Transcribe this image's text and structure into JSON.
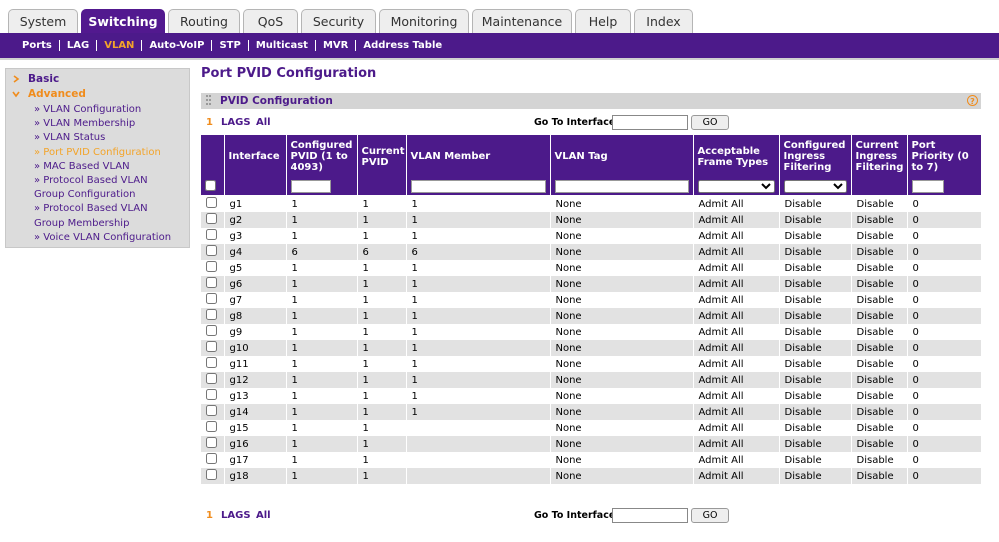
{
  "tabs": [
    "System",
    "Switching",
    "Routing",
    "QoS",
    "Security",
    "Monitoring",
    "Maintenance",
    "Help",
    "Index"
  ],
  "subnav": [
    "Ports",
    "LAG",
    "VLAN",
    "Auto-VoIP",
    "STP",
    "Multicast",
    "MVR",
    "Address Table"
  ],
  "sidebar": {
    "sections": [
      {
        "label": "Basic"
      },
      {
        "label": "Advanced",
        "items": [
          "» VLAN Configuration",
          "» VLAN Membership",
          "» VLAN Status",
          "» Port PVID Configuration",
          "» MAC Based VLAN",
          "» Protocol Based VLAN Group Configuration",
          "» Protocol Based VLAN Group Membership",
          "» Voice VLAN Configuration"
        ]
      }
    ]
  },
  "page_title": "Port PVID Configuration",
  "panel": {
    "title": "PVID Configuration",
    "help": "?"
  },
  "pager": {
    "items": [
      "1",
      "LAGS",
      "All"
    ],
    "goto_label": "Go To Interface",
    "go_button": "GO"
  },
  "table": {
    "columns": [
      "Interface",
      "Configured PVID (1 to 4093)",
      "Current PVID",
      "VLAN Member",
      "VLAN Tag",
      "Acceptable Frame Types",
      "Configured Ingress Filtering",
      "Current Ingress Filtering",
      "Port Priority (0 to 7)"
    ],
    "rows": [
      {
        "interface": "g1",
        "pvid": 1,
        "current_pvid": 1,
        "member": 1,
        "tag": "None",
        "frame_types": "Admit All",
        "ingress": "Disable",
        "current_ingress": "Disable",
        "priority": 0
      },
      {
        "interface": "g2",
        "pvid": 1,
        "current_pvid": 1,
        "member": 1,
        "tag": "None",
        "frame_types": "Admit All",
        "ingress": "Disable",
        "current_ingress": "Disable",
        "priority": 0
      },
      {
        "interface": "g3",
        "pvid": 1,
        "current_pvid": 1,
        "member": 1,
        "tag": "None",
        "frame_types": "Admit All",
        "ingress": "Disable",
        "current_ingress": "Disable",
        "priority": 0
      },
      {
        "interface": "g4",
        "pvid": 6,
        "current_pvid": 6,
        "member": 6,
        "tag": "None",
        "frame_types": "Admit All",
        "ingress": "Disable",
        "current_ingress": "Disable",
        "priority": 0
      },
      {
        "interface": "g5",
        "pvid": 1,
        "current_pvid": 1,
        "member": 1,
        "tag": "None",
        "frame_types": "Admit All",
        "ingress": "Disable",
        "current_ingress": "Disable",
        "priority": 0
      },
      {
        "interface": "g6",
        "pvid": 1,
        "current_pvid": 1,
        "member": 1,
        "tag": "None",
        "frame_types": "Admit All",
        "ingress": "Disable",
        "current_ingress": "Disable",
        "priority": 0
      },
      {
        "interface": "g7",
        "pvid": 1,
        "current_pvid": 1,
        "member": 1,
        "tag": "None",
        "frame_types": "Admit All",
        "ingress": "Disable",
        "current_ingress": "Disable",
        "priority": 0
      },
      {
        "interface": "g8",
        "pvid": 1,
        "current_pvid": 1,
        "member": 1,
        "tag": "None",
        "frame_types": "Admit All",
        "ingress": "Disable",
        "current_ingress": "Disable",
        "priority": 0
      },
      {
        "interface": "g9",
        "pvid": 1,
        "current_pvid": 1,
        "member": 1,
        "tag": "None",
        "frame_types": "Admit All",
        "ingress": "Disable",
        "current_ingress": "Disable",
        "priority": 0
      },
      {
        "interface": "g10",
        "pvid": 1,
        "current_pvid": 1,
        "member": 1,
        "tag": "None",
        "frame_types": "Admit All",
        "ingress": "Disable",
        "current_ingress": "Disable",
        "priority": 0
      },
      {
        "interface": "g11",
        "pvid": 1,
        "current_pvid": 1,
        "member": 1,
        "tag": "None",
        "frame_types": "Admit All",
        "ingress": "Disable",
        "current_ingress": "Disable",
        "priority": 0
      },
      {
        "interface": "g12",
        "pvid": 1,
        "current_pvid": 1,
        "member": 1,
        "tag": "None",
        "frame_types": "Admit All",
        "ingress": "Disable",
        "current_ingress": "Disable",
        "priority": 0
      },
      {
        "interface": "g13",
        "pvid": 1,
        "current_pvid": 1,
        "member": 1,
        "tag": "None",
        "frame_types": "Admit All",
        "ingress": "Disable",
        "current_ingress": "Disable",
        "priority": 0
      },
      {
        "interface": "g14",
        "pvid": 1,
        "current_pvid": 1,
        "member": 1,
        "tag": "None",
        "frame_types": "Admit All",
        "ingress": "Disable",
        "current_ingress": "Disable",
        "priority": 0
      },
      {
        "interface": "g15",
        "pvid": 1,
        "current_pvid": 1,
        "tag": "None",
        "frame_types": "Admit All",
        "ingress": "Disable",
        "current_ingress": "Disable",
        "priority": 0
      },
      {
        "interface": "g16",
        "pvid": 1,
        "current_pvid": 1,
        "tag": "None",
        "frame_types": "Admit All",
        "ingress": "Disable",
        "current_ingress": "Disable",
        "priority": 0
      },
      {
        "interface": "g17",
        "pvid": 1,
        "current_pvid": 1,
        "tag": "None",
        "frame_types": "Admit All",
        "ingress": "Disable",
        "current_ingress": "Disable",
        "priority": 0
      },
      {
        "interface": "g18",
        "pvid": 1,
        "current_pvid": 1,
        "tag": "None",
        "frame_types": "Admit All",
        "ingress": "Disable",
        "current_ingress": "Disable",
        "priority": 0
      }
    ]
  }
}
